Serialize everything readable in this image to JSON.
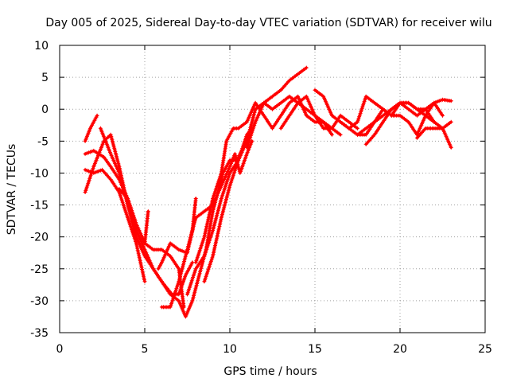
{
  "chart_data": {
    "type": "line",
    "title": "Day 005 of 2025, Sidereal Day-to-day VTEC variation (SDTVAR) for receiver wilu",
    "xlabel": "GPS time / hours",
    "ylabel": "SDTVAR / TECUs",
    "xlim": [
      0,
      25
    ],
    "ylim": [
      -35,
      10
    ],
    "xticks": [
      0,
      5,
      10,
      15,
      20,
      25
    ],
    "yticks": [
      10,
      5,
      0,
      -5,
      -10,
      -15,
      -20,
      -25,
      -30,
      -35
    ],
    "grid": true,
    "legend": "none",
    "marker": "plus",
    "color": "#ff0000",
    "series": [
      {
        "x": [
          1.5,
          1.8,
          2.2
        ],
        "y": [
          -5,
          -3,
          -1
        ]
      },
      {
        "x": [
          1.5,
          2.0,
          2.6,
          3.0,
          3.5,
          4.0,
          4.5,
          5.0,
          5.5,
          6.0,
          6.6,
          7.0,
          7.4,
          7.8
        ],
        "y": [
          -13,
          -9,
          -5,
          -4,
          -9,
          -15,
          -20,
          -23,
          -25,
          -27,
          -29,
          -29,
          -26,
          -24
        ]
      },
      {
        "x": [
          1.5,
          2.0,
          2.5,
          3.0,
          3.5,
          4.0,
          4.5,
          5.0
        ],
        "y": [
          -9.5,
          -10,
          -9.5,
          -11,
          -13,
          -17,
          -21,
          -27
        ]
      },
      {
        "x": [
          1.5,
          2.0,
          2.6,
          3.0,
          3.5,
          4.0,
          4.5,
          5.0,
          5.5,
          6.0,
          6.5,
          7.0,
          7.3
        ],
        "y": [
          -7,
          -6.5,
          -7.5,
          -9,
          -11,
          -14,
          -18,
          -21,
          -22,
          -22,
          -23,
          -25,
          -31
        ]
      },
      {
        "x": [
          2.4,
          3.0,
          3.5,
          4.0,
          4.5,
          5.0,
          5.5,
          6.0,
          6.5,
          7.0,
          7.4,
          7.8,
          8.2,
          8.6,
          9.0,
          9.3,
          9.6,
          10.0,
          10.4,
          10.8
        ],
        "y": [
          -3,
          -7,
          -10,
          -15,
          -19,
          -22,
          -25,
          -27,
          -29,
          -30,
          -32.5,
          -30,
          -26,
          -22,
          -16,
          -13,
          -10,
          -8,
          -8,
          -6
        ]
      },
      {
        "x": [
          3.5,
          4.0,
          4.5,
          5.0,
          5.2
        ],
        "y": [
          -12.5,
          -14,
          -18,
          -21,
          -16
        ]
      },
      {
        "x": [
          5.8,
          6.0,
          6.5,
          7.0,
          7.5,
          7.8,
          8.0
        ],
        "y": [
          -25,
          -24,
          -21,
          -22,
          -22.5,
          -19,
          -14
        ]
      },
      {
        "x": [
          6.0,
          6.5,
          7.0,
          7.5,
          8.0,
          8.5,
          9.0,
          9.5,
          10.0,
          10.3,
          10.6,
          11.0,
          11.3
        ],
        "y": [
          -31,
          -31,
          -27,
          -22,
          -17,
          -16,
          -15,
          -12,
          -9,
          -7,
          -10,
          -7,
          -5
        ]
      },
      {
        "x": [
          7.5,
          8.0,
          8.5,
          9.0,
          9.5,
          10.0,
          10.5,
          11.0,
          11.3
        ],
        "y": [
          -29,
          -25,
          -23,
          -19,
          -14,
          -10,
          -8,
          -4,
          -3
        ]
      },
      {
        "x": [
          8.0,
          8.5,
          9.0,
          9.5,
          9.8,
          10.2,
          10.5,
          11.0,
          11.5,
          12.0,
          12.5,
          13.0,
          13.5,
          14.0,
          14.5,
          15.0,
          15.5,
          16.0
        ],
        "y": [
          -24,
          -20,
          -14,
          -10,
          -5,
          -3,
          -3,
          -2,
          1,
          -1,
          -3,
          -1,
          1,
          2,
          -1,
          -2,
          -2,
          -4
        ]
      },
      {
        "x": [
          8.5,
          9.0,
          9.5,
          10.0,
          10.5,
          11.0,
          11.5,
          12.0,
          12.5,
          13.0,
          13.5,
          14.0,
          14.5
        ],
        "y": [
          -27,
          -23,
          -17,
          -12,
          -8,
          -5,
          0,
          1,
          2,
          3,
          4.5,
          5.5,
          6.5
        ]
      },
      {
        "x": [
          11.0,
          11.5,
          12.0,
          12.5,
          13.0,
          13.5,
          14.0,
          14.5,
          15.0,
          15.5,
          16.0,
          16.5
        ],
        "y": [
          -6,
          -2,
          1,
          0,
          1,
          2,
          1,
          0,
          -1,
          -2,
          -3,
          -4
        ]
      },
      {
        "x": [
          13.0,
          13.5,
          14.0,
          14.5,
          15.0,
          15.5,
          16.0,
          16.5,
          17.0,
          17.5
        ],
        "y": [
          -3,
          -1,
          1,
          2,
          -1,
          -3,
          -3,
          -1,
          -2,
          -3
        ]
      },
      {
        "x": [
          15.0,
          15.5,
          16.0,
          16.5,
          17.0,
          17.5,
          18.0,
          18.5,
          19.0
        ],
        "y": [
          3,
          2,
          -1,
          -2,
          -3,
          -4,
          -4,
          -2,
          0
        ]
      },
      {
        "x": [
          16.5,
          17.0,
          17.5,
          18.0,
          18.5,
          19.0,
          19.5,
          20.0,
          20.5,
          21.0,
          21.5,
          22.0
        ],
        "y": [
          -2,
          -3,
          -2,
          2,
          1,
          0,
          -1,
          1,
          0,
          -1,
          0,
          -2
        ]
      },
      {
        "x": [
          18.0,
          18.5,
          19.0,
          19.5,
          20.0,
          20.5,
          21.0,
          21.5,
          22.0,
          22.5,
          23.0
        ],
        "y": [
          -5.5,
          -4,
          -2,
          0,
          1,
          1,
          0,
          -1,
          -2,
          -3,
          -6
        ]
      },
      {
        "x": [
          19.0,
          19.5,
          20.0,
          20.5,
          21.0,
          21.5,
          22.0,
          22.5,
          23.0
        ],
        "y": [
          0,
          -1,
          -1,
          -2,
          -4,
          -1,
          1,
          1.5,
          1.3
        ]
      },
      {
        "x": [
          21.0,
          21.5,
          22.0,
          22.5,
          23.0
        ],
        "y": [
          -4.5,
          -3,
          -3,
          -3,
          -2
        ]
      },
      {
        "x": [
          17.5,
          18.0,
          18.5,
          19.0,
          19.5,
          20.0,
          20.5,
          21.0,
          21.5,
          22.0,
          22.5
        ],
        "y": [
          -4,
          -3,
          -2,
          -1,
          0,
          1,
          1,
          0,
          0,
          1,
          -1
        ]
      }
    ]
  }
}
